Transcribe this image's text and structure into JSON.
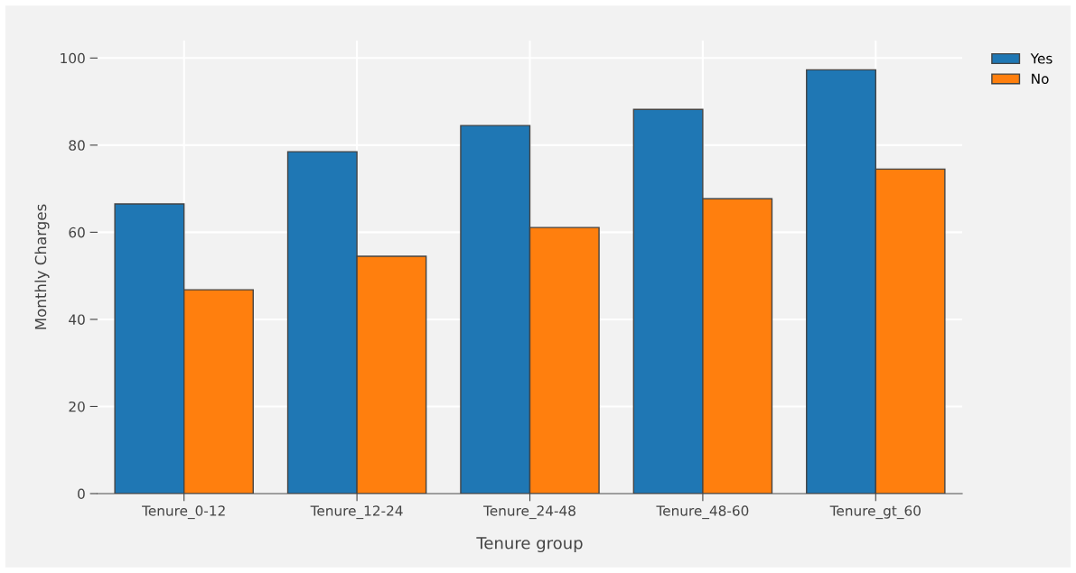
{
  "chart_data": {
    "type": "bar",
    "xlabel": "Tenure group",
    "ylabel": "Monthly Charges",
    "categories": [
      "Tenure_0-12",
      "Tenure_12-24",
      "Tenure_24-48",
      "Tenure_48-60",
      "Tenure_gt_60"
    ],
    "series": [
      {
        "name": "Yes",
        "color": "#1f77b4",
        "values": [
          66.5,
          78.5,
          84.5,
          88.2,
          97.3
        ]
      },
      {
        "name": "No",
        "color": "#ff7f0e",
        "values": [
          46.8,
          54.5,
          61.1,
          67.7,
          74.5
        ]
      }
    ],
    "ylim": [
      0,
      104
    ],
    "yticks": [
      0,
      20,
      40,
      60,
      80,
      100
    ],
    "grid": true,
    "legend": "top right"
  }
}
